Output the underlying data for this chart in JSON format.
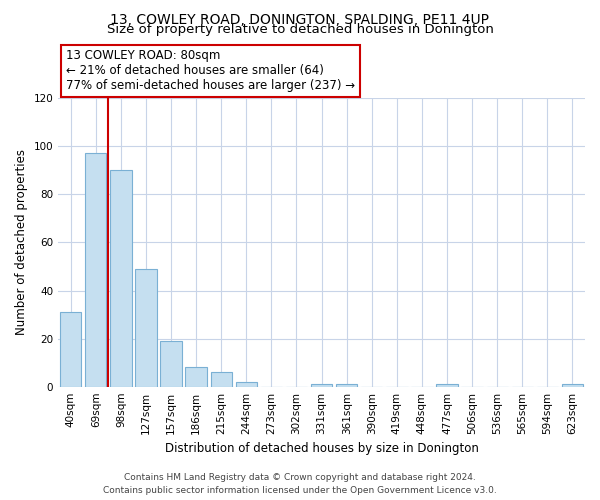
{
  "title": "13, COWLEY ROAD, DONINGTON, SPALDING, PE11 4UP",
  "subtitle": "Size of property relative to detached houses in Donington",
  "xlabel": "Distribution of detached houses by size in Donington",
  "ylabel": "Number of detached properties",
  "categories": [
    "40sqm",
    "69sqm",
    "98sqm",
    "127sqm",
    "157sqm",
    "186sqm",
    "215sqm",
    "244sqm",
    "273sqm",
    "302sqm",
    "331sqm",
    "361sqm",
    "390sqm",
    "419sqm",
    "448sqm",
    "477sqm",
    "506sqm",
    "536sqm",
    "565sqm",
    "594sqm",
    "623sqm"
  ],
  "values": [
    31,
    97,
    90,
    49,
    19,
    8,
    6,
    2,
    0,
    0,
    1,
    1,
    0,
    0,
    0,
    1,
    0,
    0,
    0,
    0,
    1
  ],
  "bar_color": "#c5dff0",
  "bar_edge_color": "#7ab0d4",
  "vline_x": 1.5,
  "vline_color": "#cc0000",
  "annotation_text": "13 COWLEY ROAD: 80sqm\n← 21% of detached houses are smaller (64)\n77% of semi-detached houses are larger (237) →",
  "annotation_box_color": "#ffffff",
  "annotation_box_edge": "#cc0000",
  "ylim": [
    0,
    120
  ],
  "yticks": [
    0,
    20,
    40,
    60,
    80,
    100,
    120
  ],
  "footer": "Contains HM Land Registry data © Crown copyright and database right 2024.\nContains public sector information licensed under the Open Government Licence v3.0.",
  "bg_color": "#ffffff",
  "grid_color": "#c8d4e8",
  "title_fontsize": 10,
  "subtitle_fontsize": 9.5,
  "axis_label_fontsize": 8.5,
  "tick_fontsize": 7.5,
  "annotation_fontsize": 8.5,
  "footer_fontsize": 6.5
}
